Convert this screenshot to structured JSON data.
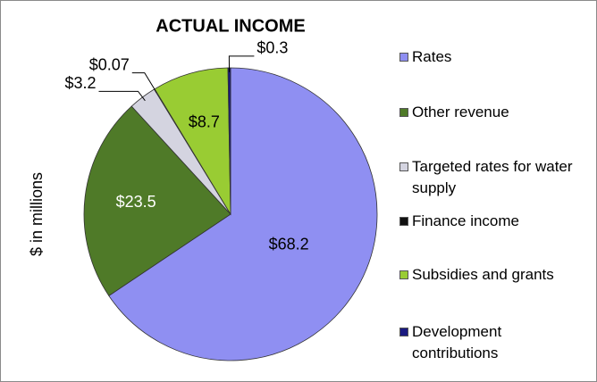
{
  "chart_data": {
    "type": "pie",
    "title": "ACTUAL INCOME",
    "y_label": "$ in millions",
    "categories": [
      "Rates",
      "Other revenue",
      "Targeted rates for water supply",
      "Finance income",
      "Subsidies and grants",
      "Development contributions"
    ],
    "values": [
      68.2,
      23.5,
      3.2,
      0.07,
      8.7,
      0.3
    ],
    "value_labels": [
      "$68.2",
      "$23.5",
      "$3.2",
      "$0.07",
      "$8.7",
      "$0.3"
    ],
    "colors": [
      "#8f8ff2",
      "#4f7a28",
      "#d4d4e0",
      "#111111",
      "#99cc33",
      "#1a1a80"
    ]
  }
}
